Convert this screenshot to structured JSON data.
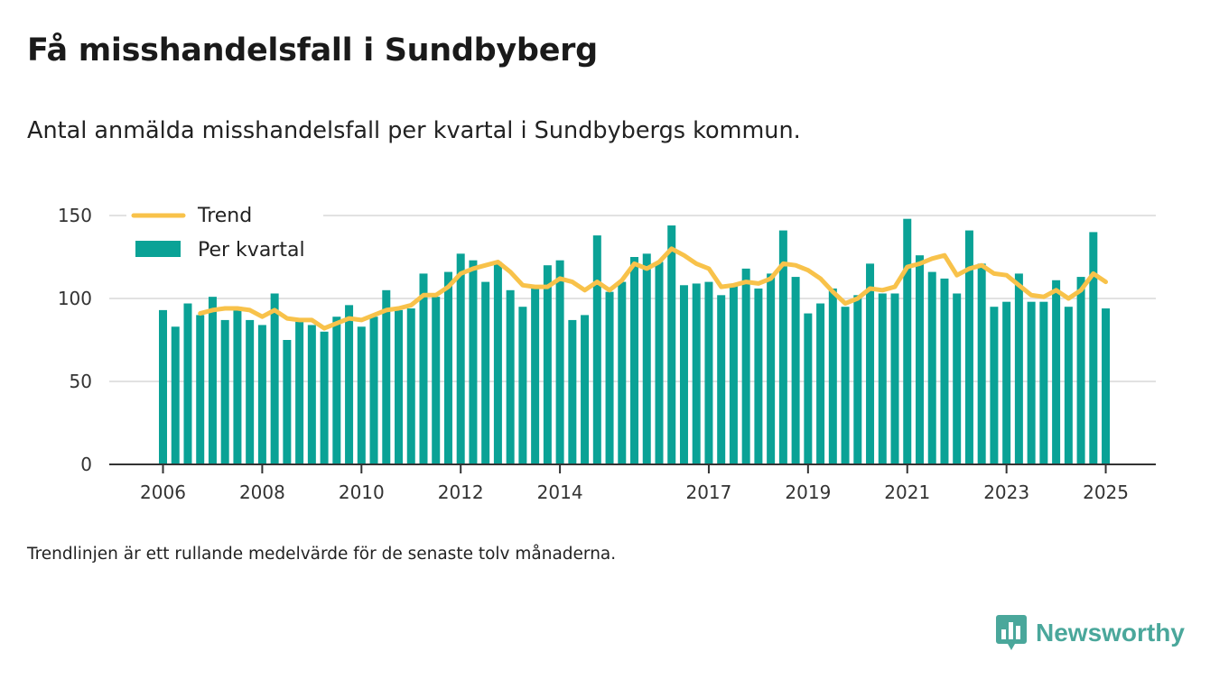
{
  "title": "Få misshandelsfall i Sundbyberg",
  "subtitle": "Antal anmälda misshandelsfall per kvartal i Sundbybergs kommun.",
  "note": "Trendlinjen är ett rullande medelvärde för de senaste tolv månaderna.",
  "brand": {
    "name": "Newsworthy",
    "icon": "newsworthy-logo-icon",
    "color": "#4aa79b"
  },
  "colors": {
    "bars": "#0aa296",
    "trend": "#f8c24a",
    "grid": "#d9d9d9",
    "axis": "#333333"
  },
  "chart_data": {
    "type": "bar",
    "legend": {
      "placement": "top-left",
      "items": [
        "Trend",
        "Per kvartal"
      ]
    },
    "ylim": [
      0,
      150
    ],
    "yticks": [
      0,
      50,
      100,
      150
    ],
    "xticks": [
      "2006",
      "2008",
      "2010",
      "2012",
      "2014",
      "2017",
      "2019",
      "2021",
      "2023",
      "2025"
    ],
    "xtick_positions": [
      2006,
      2008,
      2010,
      2012,
      2014,
      2017,
      2019,
      2021,
      2023,
      2025
    ],
    "grid": true,
    "x_start": 2006,
    "x_step": 0.25,
    "series": [
      {
        "name": "Per kvartal",
        "type": "bar",
        "values": [
          93,
          83,
          97,
          90,
          101,
          87,
          95,
          87,
          84,
          103,
          75,
          86,
          84,
          80,
          89,
          96,
          83,
          89,
          105,
          93,
          94,
          115,
          101,
          116,
          127,
          123,
          110,
          122,
          105,
          95,
          108,
          120,
          123,
          87,
          90,
          138,
          104,
          110,
          125,
          127,
          122,
          144,
          108,
          109,
          110,
          102,
          108,
          118,
          106,
          115,
          141,
          113,
          91,
          97,
          106,
          95,
          102,
          121,
          103,
          103,
          148,
          126,
          116,
          112,
          103,
          141,
          121,
          95,
          98,
          115,
          98,
          98,
          111,
          95,
          113,
          140,
          94
        ]
      },
      {
        "name": "Trend",
        "type": "line",
        "start_index": 3,
        "values": [
          91,
          93,
          94,
          94,
          93,
          89,
          93,
          88,
          87,
          87,
          82,
          85,
          88,
          87,
          90,
          93,
          94,
          96,
          102,
          102,
          107,
          115,
          118,
          120,
          122,
          116,
          108,
          107,
          107,
          112,
          110,
          105,
          110,
          105,
          111,
          121,
          118,
          122,
          130,
          126,
          121,
          118,
          107,
          108,
          110,
          109,
          112,
          121,
          120,
          117,
          112,
          104,
          97,
          100,
          106,
          105,
          107,
          119,
          121,
          124,
          126,
          114,
          118,
          120,
          115,
          114,
          108,
          102,
          101,
          105,
          100,
          105,
          115,
          110
        ]
      }
    ]
  }
}
